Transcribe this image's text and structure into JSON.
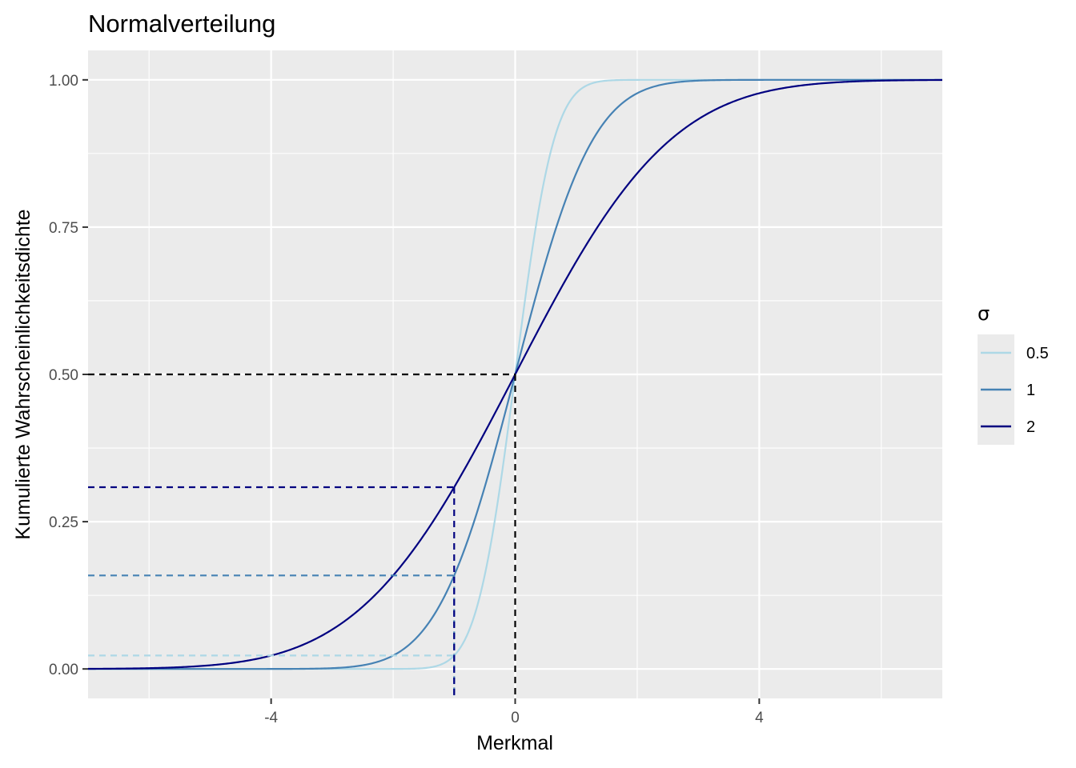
{
  "chart_data": {
    "type": "line",
    "title": "Normalverteilung",
    "xlabel": "Merkmal",
    "ylabel": "Kumulierte Wahrscheinlichkeitsdichte",
    "xlim": [
      -7,
      7
    ],
    "ylim": [
      -0.05,
      1.05
    ],
    "x_ticks": [
      -4,
      0,
      4
    ],
    "x_tick_labels": [
      "-4",
      "0",
      "4"
    ],
    "y_ticks": [
      0,
      0.25,
      0.5,
      0.75,
      1
    ],
    "y_tick_labels": [
      "0.00",
      "0.25",
      "0.50",
      "0.75",
      "1.00"
    ],
    "grid": true,
    "legend": {
      "title": "σ",
      "position": "right"
    },
    "series": [
      {
        "name": "0.5",
        "mean": 0,
        "sd": 0.5,
        "color": "#add8e6",
        "function": "normal-cdf"
      },
      {
        "name": "1",
        "mean": 0,
        "sd": 1,
        "color": "#4682b4",
        "function": "normal-cdf"
      },
      {
        "name": "2",
        "mean": 0,
        "sd": 2,
        "color": "#000080",
        "function": "normal-cdf"
      }
    ],
    "reference_lines": [
      {
        "x": 0,
        "y": 0.5,
        "color": "#000000"
      },
      {
        "x": -1,
        "y": 0.0228,
        "color": "#add8e6"
      },
      {
        "x": -1,
        "y": 0.1587,
        "color": "#4682b4"
      },
      {
        "x": -1,
        "y": 0.3085,
        "color": "#000080"
      }
    ]
  }
}
